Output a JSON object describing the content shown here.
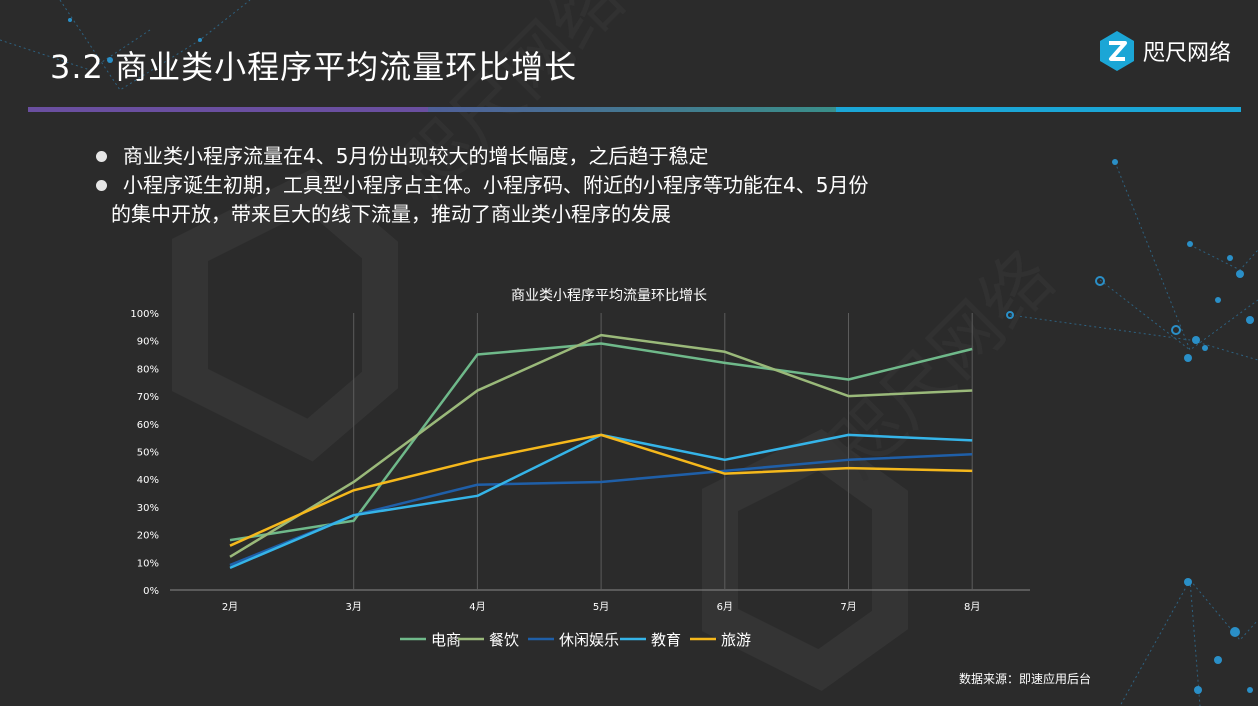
{
  "slide": {
    "title": "3.2 商业类小程序平均流量环比增长",
    "logo_text": "咫尺网络",
    "logo_icon": "z-hexagon-logo-icon",
    "accent_colors": [
      "#6a4fa0",
      "#3a8f8a",
      "#1ba6d6"
    ],
    "bullets": [
      "商业类小程序流量在4、5月份出现较大的增长幅度，之后趋于稳定",
      "小程序诞生初期，工具型小程序占主体。小程序码、附近的小程序等功能在4、5月份"
    ],
    "bullet_continuation": "的集中开放，带来巨大的线下流量，推动了商业类小程序的发展",
    "source": "数据来源：即速应用后台"
  },
  "chart_data": {
    "type": "line",
    "title": "商业类小程序平均流量环比增长",
    "categories": [
      "2月",
      "3月",
      "4月",
      "5月",
      "6月",
      "7月",
      "8月"
    ],
    "y_ticks": [
      "0%",
      "10%",
      "20%",
      "30%",
      "40%",
      "50%",
      "60%",
      "70%",
      "80%",
      "90%",
      "100%"
    ],
    "ylim": [
      0,
      100
    ],
    "grid": "vertical-lines",
    "legend_position": "bottom",
    "series": [
      {
        "name": "电商",
        "color": "#6fb98a",
        "values": [
          18,
          25,
          85,
          89,
          82,
          76,
          87
        ]
      },
      {
        "name": "餐饮",
        "color": "#9ab97a",
        "values": [
          12,
          39,
          72,
          92,
          86,
          70,
          72
        ]
      },
      {
        "name": "休闲娱乐",
        "color": "#1f5fa8",
        "values": [
          9,
          27,
          38,
          39,
          43,
          47,
          49
        ]
      },
      {
        "name": "教育",
        "color": "#35b4e8",
        "values": [
          8,
          27,
          34,
          56,
          47,
          56,
          54
        ]
      },
      {
        "name": "旅游",
        "color": "#f5b81c",
        "values": [
          16,
          36,
          47,
          56,
          42,
          44,
          43
        ]
      }
    ]
  }
}
